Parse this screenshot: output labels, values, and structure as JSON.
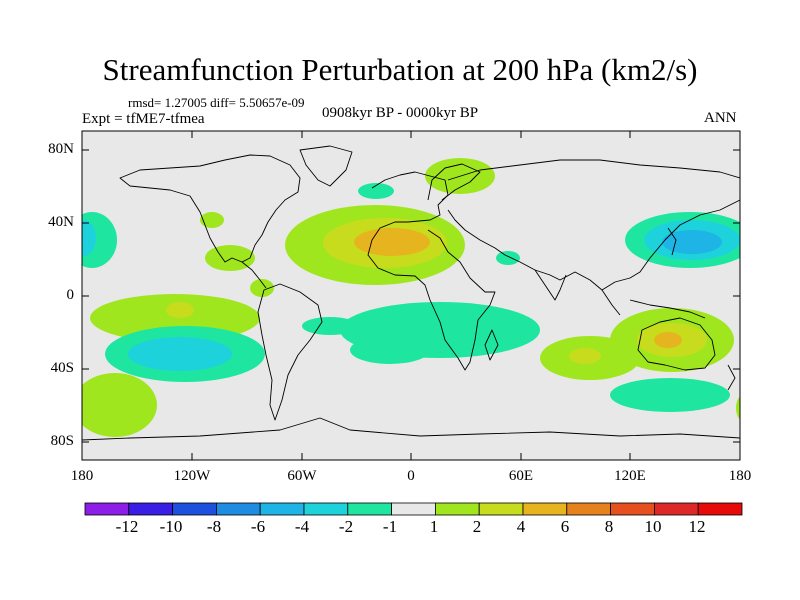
{
  "title": "Streamfunction Perturbation at 200 hPa (km2/s)",
  "stats": "rmsd= 1.27005 diff= 5.50657e-09",
  "experiment": "Expt = tfME7-tfmea",
  "period": "0908kyr BP - 0000kyr BP",
  "season": "ANN",
  "lat_labels": [
    "80N",
    "40N",
    "0",
    "40S",
    "80S"
  ],
  "lon_labels": [
    "180",
    "120W",
    "60W",
    "0",
    "60E",
    "120E",
    "180"
  ],
  "colorbar": {
    "labels": [
      "-12",
      "-10",
      "-8",
      "-6",
      "-4",
      "-2",
      "-1",
      "1",
      "2",
      "4",
      "6",
      "8",
      "10",
      "12"
    ],
    "colors": [
      "#8c1ee8",
      "#3a1ee6",
      "#1e50e0",
      "#1e8ce0",
      "#1eb4e6",
      "#1ed2dc",
      "#1ee6a0",
      "#e8e8e8",
      "#a0e61e",
      "#c8dc1e",
      "#e6b41e",
      "#e6821e",
      "#e6501e",
      "#dc2828",
      "#e60a0a"
    ]
  }
}
